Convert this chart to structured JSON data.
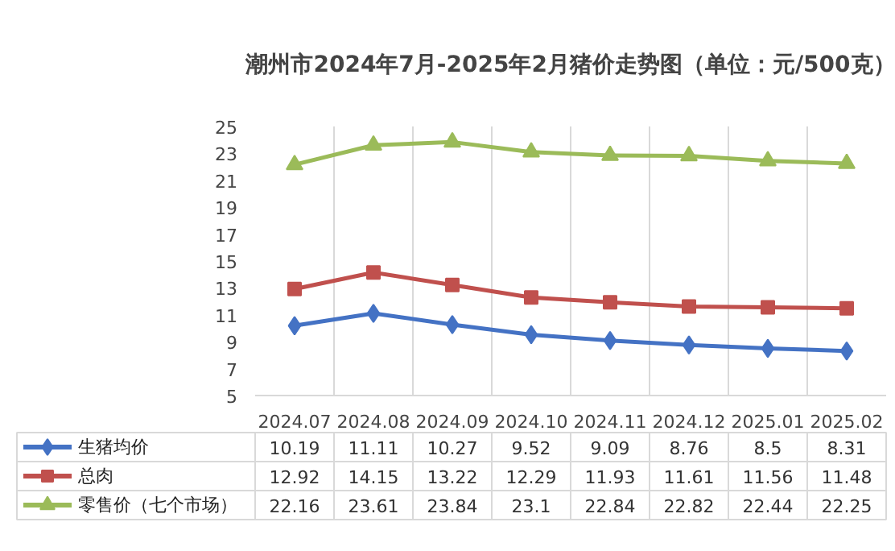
{
  "chart_data": {
    "type": "line",
    "title": "潮州市2024年7月-2025年2月猪价走势图（单位：元/500克）",
    "categories": [
      "2024.07",
      "2024.08",
      "2024.09",
      "2024.10",
      "2024.11",
      "2024.12",
      "2025.01",
      "2025.02"
    ],
    "series": [
      {
        "name": "生猪均价",
        "color": "#4472c4",
        "marker": "diamond",
        "values": [
          10.19,
          11.11,
          10.27,
          9.52,
          9.09,
          8.76,
          8.5,
          8.31
        ]
      },
      {
        "name": "总肉",
        "color": "#c0504d",
        "marker": "square",
        "values": [
          12.92,
          14.15,
          13.22,
          12.29,
          11.93,
          11.61,
          11.56,
          11.48
        ]
      },
      {
        "name": "零售价（七个市场）",
        "color": "#9bbb59",
        "marker": "triangle",
        "values": [
          22.16,
          23.61,
          23.84,
          23.1,
          22.84,
          22.82,
          22.44,
          22.25
        ]
      }
    ],
    "ylim": [
      5,
      25
    ],
    "yticks": [
      5,
      7,
      9,
      11,
      13,
      15,
      17,
      19,
      21,
      23,
      25
    ],
    "grid": "x",
    "legend": "bottom",
    "data_labels": true,
    "line_style": "solid"
  }
}
